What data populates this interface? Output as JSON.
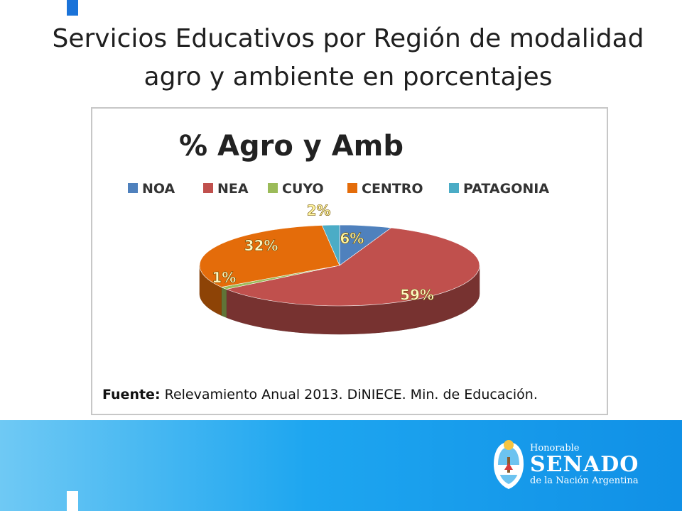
{
  "slide": {
    "title": "Servicios Educativos por Región de modalidad agro y ambiente en porcentajes",
    "source_label": "Fuente:",
    "source_text": "Relevamiento Anual 2013. DiNIECE. Min. de Educación."
  },
  "logo": {
    "line1": "Honorable",
    "line2": "SENADO",
    "line3": "de la Nación Argentina"
  },
  "colors": {
    "NOA": "#4f81bd",
    "NEA": "#c0504d",
    "CUYO": "#9bbb59",
    "CENTRO": "#e46c0a",
    "PATAGONIA": "#4bacc6",
    "footer": "#1ea6f0"
  },
  "chart_data": {
    "type": "pie",
    "style": "3d",
    "title": "% Agro y Amb",
    "legend_position": "top",
    "categories": [
      "NOA",
      "NEA",
      "CUYO",
      "CENTRO",
      "PATAGONIA"
    ],
    "values": [
      6,
      59,
      1,
      32,
      2
    ],
    "labels": [
      "6%",
      "59%",
      "1%",
      "32%",
      "2%"
    ]
  }
}
